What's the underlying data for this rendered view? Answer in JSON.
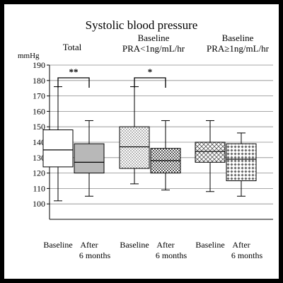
{
  "chart_data": {
    "type": "box",
    "title": "Systolic blood pressure",
    "ylabel": "mmHg",
    "ylim": [
      90,
      190
    ],
    "yticks": [
      100,
      110,
      120,
      130,
      140,
      150,
      160,
      170,
      180,
      190
    ],
    "grid": true,
    "groups": [
      {
        "label_lines": [
          "Total"
        ],
        "boxes": [
          {
            "label_lines": [
              "Baseline"
            ],
            "min": 102,
            "q1": 124,
            "median": 135,
            "q3": 148,
            "max": 176,
            "fill": "white",
            "pattern": "none"
          },
          {
            "label_lines": [
              "After",
              "6 months"
            ],
            "min": 105,
            "q1": 120,
            "median": 127,
            "q3": 139,
            "max": 154,
            "fill": "#b8b8b8",
            "pattern": "none"
          }
        ],
        "significance": "**"
      },
      {
        "label_lines": [
          "Baseline",
          "PRA<1ng/mL/hr"
        ],
        "boxes": [
          {
            "label_lines": [
              "Baseline"
            ],
            "min": 113,
            "q1": 123,
            "median": 137,
            "q3": 150,
            "max": 176,
            "fill": "white",
            "pattern": "dots"
          },
          {
            "label_lines": [
              "After",
              "6 months"
            ],
            "min": 109,
            "q1": 120,
            "median": 128,
            "q3": 136,
            "max": 154,
            "fill": "white",
            "pattern": "checker"
          }
        ],
        "significance": "*"
      },
      {
        "label_lines": [
          "Baseline",
          "PRA≥1ng/mL/hr"
        ],
        "boxes": [
          {
            "label_lines": [
              "Baseline"
            ],
            "min": 108,
            "q1": 127,
            "median": 134,
            "q3": 140,
            "max": 154,
            "fill": "white",
            "pattern": "crosshatch"
          },
          {
            "label_lines": [
              "After",
              "6 months"
            ],
            "min": 105,
            "q1": 115,
            "median": 129,
            "q3": 139,
            "max": 146,
            "fill": "white",
            "pattern": "diamond"
          }
        ],
        "significance": ""
      }
    ]
  }
}
